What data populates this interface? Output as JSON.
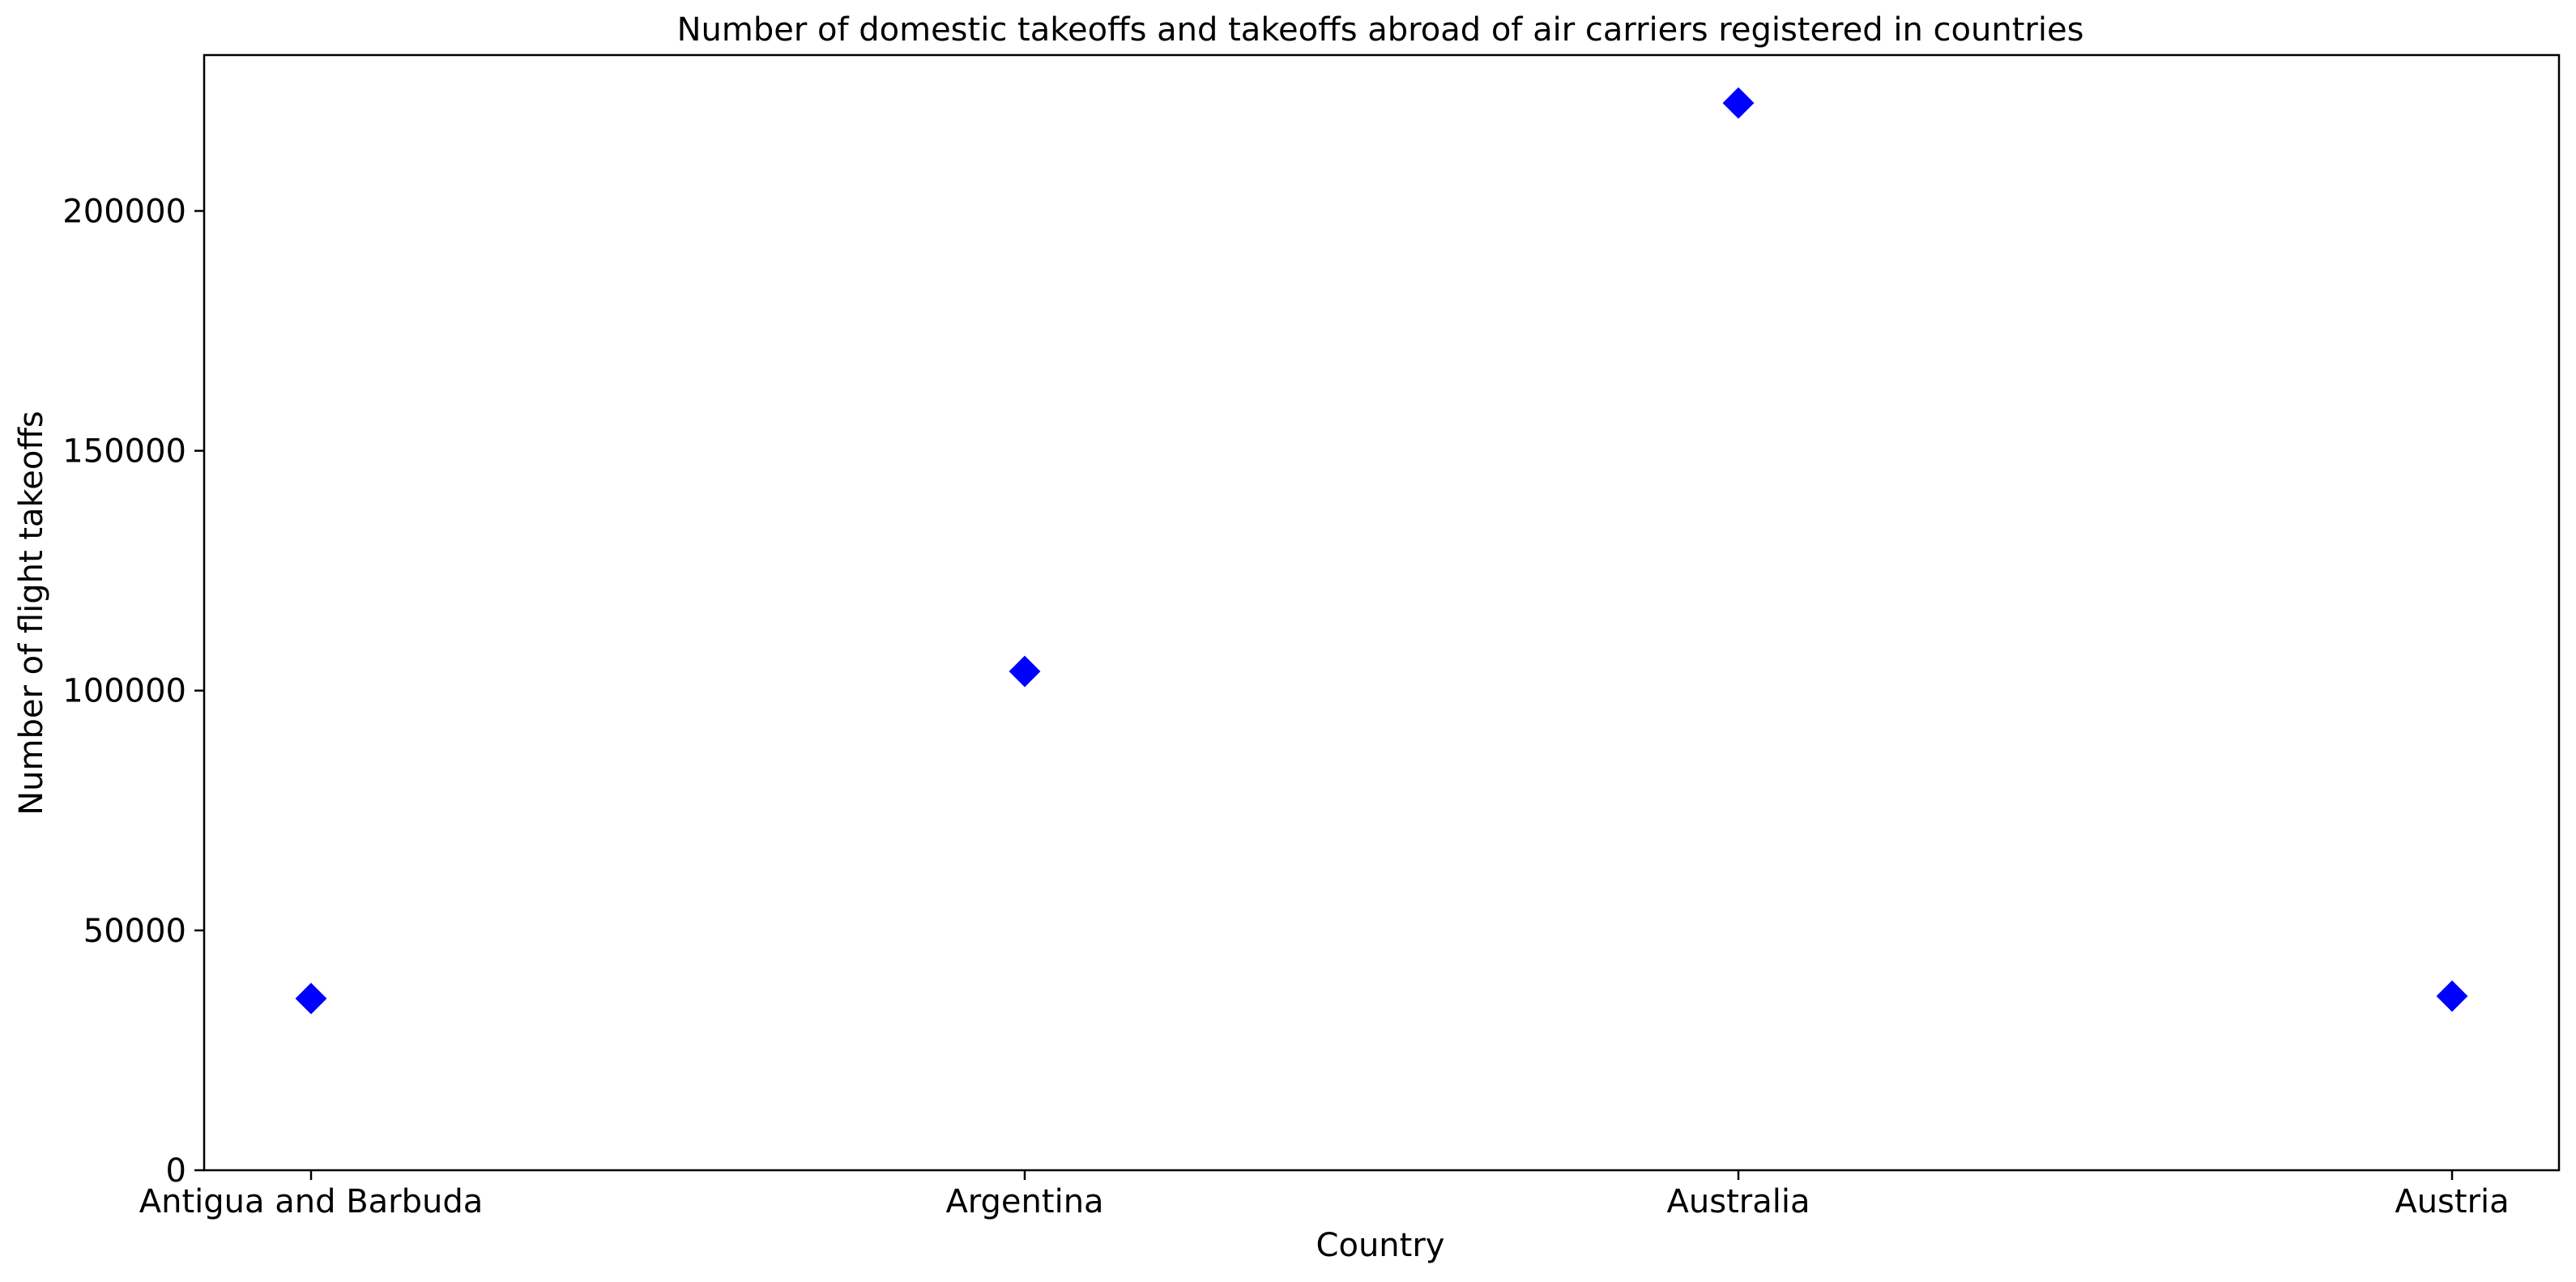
{
  "chart_data": {
    "type": "scatter",
    "title": "Number of domestic takeoffs and takeoffs abroad of air carriers registered in countries",
    "xlabel": "Country",
    "ylabel": "Number of flight takeoffs",
    "categories": [
      "Antigua and Barbuda",
      "Argentina",
      "Australia",
      "Austria"
    ],
    "values": [
      35800,
      104000,
      222500,
      36300
    ],
    "ylim": [
      0,
      232500
    ],
    "yticks": [
      0,
      50000,
      100000,
      150000,
      200000
    ],
    "ytick_labels": [
      "0",
      "50000",
      "100000",
      "150000",
      "200000"
    ],
    "marker": "diamond",
    "marker_color": "#0000ff",
    "grid": false,
    "legend": "none"
  }
}
